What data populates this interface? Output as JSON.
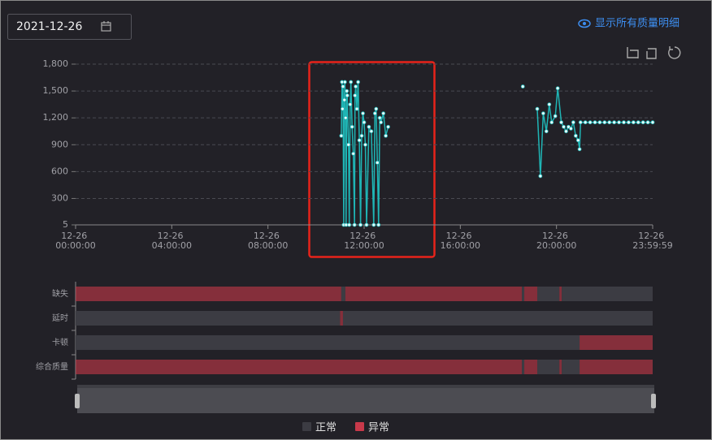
{
  "date": "2021-12-26",
  "link": "显示所有质量明细",
  "chart_data": [
    {
      "type": "line",
      "color": "#1fb5b5",
      "xlim": [
        0,
        23.9997
      ],
      "ylim": [
        5,
        1800
      ],
      "grid": true,
      "xticks": [
        {
          "value": 0,
          "label": "12-26 00:00:00"
        },
        {
          "value": 4,
          "label": "12-26 04:00:00"
        },
        {
          "value": 8,
          "label": "12-26 08:00:00"
        },
        {
          "value": 12,
          "label": "12-26 12:00:00"
        },
        {
          "value": 16,
          "label": "12-26 16:00:00"
        },
        {
          "value": 20,
          "label": "12-26 20:00:00"
        },
        {
          "value": 23.9997,
          "label": "12-26 23:59:59"
        }
      ],
      "yticks": [
        5,
        300,
        600,
        900,
        {
          "value": 1200,
          "label": "1,200"
        },
        {
          "value": 1500,
          "label": "1,500"
        },
        {
          "value": 1800,
          "label": "1,800"
        }
      ],
      "x": [
        11.05,
        11.08,
        11.1,
        11.12,
        11.15,
        11.18,
        11.2,
        11.23,
        11.25,
        11.28,
        11.3,
        11.35,
        11.38,
        11.42,
        11.45,
        11.5,
        11.55,
        11.6,
        11.62,
        11.65,
        11.7,
        11.75,
        11.8,
        11.85,
        11.9,
        11.95,
        12.0,
        12.05,
        12.1,
        12.2,
        12.3,
        12.4,
        12.45,
        12.5,
        12.55,
        12.6,
        12.65,
        12.7,
        12.8,
        12.9,
        13.0,
        null,
        18.6,
        null,
        19.2,
        19.33,
        19.45,
        19.58,
        19.7,
        19.8,
        19.95,
        20.05,
        20.2,
        20.3,
        20.4,
        20.5,
        20.6,
        20.7,
        20.8,
        20.9,
        20.96,
        21.0,
        21.2,
        21.4,
        21.6,
        21.8,
        22.0,
        22.2,
        22.4,
        22.6,
        22.8,
        23.0,
        23.2,
        23.4,
        23.6,
        23.8,
        23.9997
      ],
      "values": [
        1000,
        1600,
        1300,
        1550,
        5,
        1400,
        1600,
        1200,
        5,
        1500,
        1450,
        900,
        5,
        1350,
        1600,
        1100,
        800,
        5,
        1450,
        1550,
        1300,
        1600,
        950,
        5,
        1000,
        1250,
        1150,
        900,
        5,
        1100,
        1050,
        5,
        1250,
        1300,
        700,
        5,
        1200,
        1150,
        1250,
        1000,
        1100,
        null,
        1550,
        null,
        1300,
        550,
        1250,
        1050,
        1350,
        1150,
        1220,
        1530,
        1150,
        1100,
        1050,
        1100,
        1080,
        1150,
        1000,
        950,
        850,
        1150,
        1150,
        1150,
        1150,
        1150,
        1150,
        1150,
        1150,
        1150,
        1150,
        1150,
        1150,
        1150,
        1150,
        1150,
        1150
      ]
    },
    {
      "type": "timeline",
      "xlim": [
        0,
        23.9997
      ],
      "legend": [
        {
          "name": "正常",
          "color": "#3c3c43"
        },
        {
          "name": "异常",
          "color": "#c8394a"
        }
      ],
      "rows": [
        {
          "name": "缺失",
          "segments": [
            {
              "start": 0,
              "end": 11.05,
              "state": 1
            },
            {
              "start": 11.05,
              "end": 11.22,
              "state": 0
            },
            {
              "start": 11.22,
              "end": 18.56,
              "state": 1
            },
            {
              "start": 18.56,
              "end": 18.66,
              "state": 0
            },
            {
              "start": 18.66,
              "end": 19.2,
              "state": 1
            },
            {
              "start": 19.2,
              "end": 20.12,
              "state": 0
            },
            {
              "start": 20.12,
              "end": 20.22,
              "state": 1
            },
            {
              "start": 20.22,
              "end": 23.9997,
              "state": 0
            }
          ]
        },
        {
          "name": "延时",
          "segments": [
            {
              "start": 0,
              "end": 11.0,
              "state": 0
            },
            {
              "start": 11.0,
              "end": 11.12,
              "state": 1
            },
            {
              "start": 11.12,
              "end": 23.9997,
              "state": 0
            }
          ]
        },
        {
          "name": "卡顿",
          "segments": [
            {
              "start": 0,
              "end": 20.96,
              "state": 0
            },
            {
              "start": 20.96,
              "end": 23.9997,
              "state": 1
            }
          ]
        },
        {
          "name": "综合质量",
          "segments": [
            {
              "start": 0,
              "end": 18.56,
              "state": 1
            },
            {
              "start": 18.56,
              "end": 18.66,
              "state": 0
            },
            {
              "start": 18.66,
              "end": 19.2,
              "state": 1
            },
            {
              "start": 19.2,
              "end": 20.12,
              "state": 0
            },
            {
              "start": 20.12,
              "end": 20.22,
              "state": 1
            },
            {
              "start": 20.22,
              "end": 20.96,
              "state": 0
            },
            {
              "start": 20.96,
              "end": 23.9997,
              "state": 1
            }
          ]
        }
      ]
    }
  ]
}
